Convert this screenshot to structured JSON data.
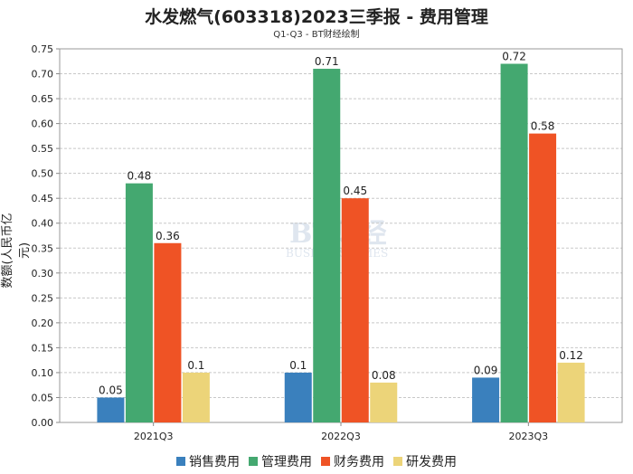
{
  "chart_data": {
    "type": "bar",
    "title": "水发燃气(603318)2023三季报 - 费用管理",
    "subtitle": "Q1-Q3 - BT财经绘制",
    "xlabel": "",
    "ylabel": "数额(人民币亿元)",
    "ylim": [
      0,
      0.75
    ],
    "yticks": [
      "0.00",
      "0.05",
      "0.10",
      "0.15",
      "0.20",
      "0.25",
      "0.30",
      "0.35",
      "0.40",
      "0.45",
      "0.50",
      "0.55",
      "0.60",
      "0.65",
      "0.70",
      "0.75"
    ],
    "grid": true,
    "legend_position": "bottom",
    "categories": [
      "2021Q3",
      "2022Q3",
      "2023Q3"
    ],
    "series": [
      {
        "name": "销售费用",
        "color": "#3a80bd",
        "values": [
          0.05,
          0.1,
          0.09
        ],
        "labels": [
          "0.05",
          "0.1",
          "0.09"
        ]
      },
      {
        "name": "管理费用",
        "color": "#44a870",
        "values": [
          0.48,
          0.71,
          0.72
        ],
        "labels": [
          "0.48",
          "0.71",
          "0.72"
        ]
      },
      {
        "name": "财务费用",
        "color": "#ef5325",
        "values": [
          0.36,
          0.45,
          0.58
        ],
        "labels": [
          "0.36",
          "0.45",
          "0.58"
        ]
      },
      {
        "name": "研发费用",
        "color": "#ecd479",
        "values": [
          0.1,
          0.08,
          0.12
        ],
        "labels": [
          "0.1",
          "0.08",
          "0.12"
        ]
      }
    ]
  },
  "watermark": {
    "text": "BT财经",
    "sub": "BUSINESS TIMES"
  }
}
